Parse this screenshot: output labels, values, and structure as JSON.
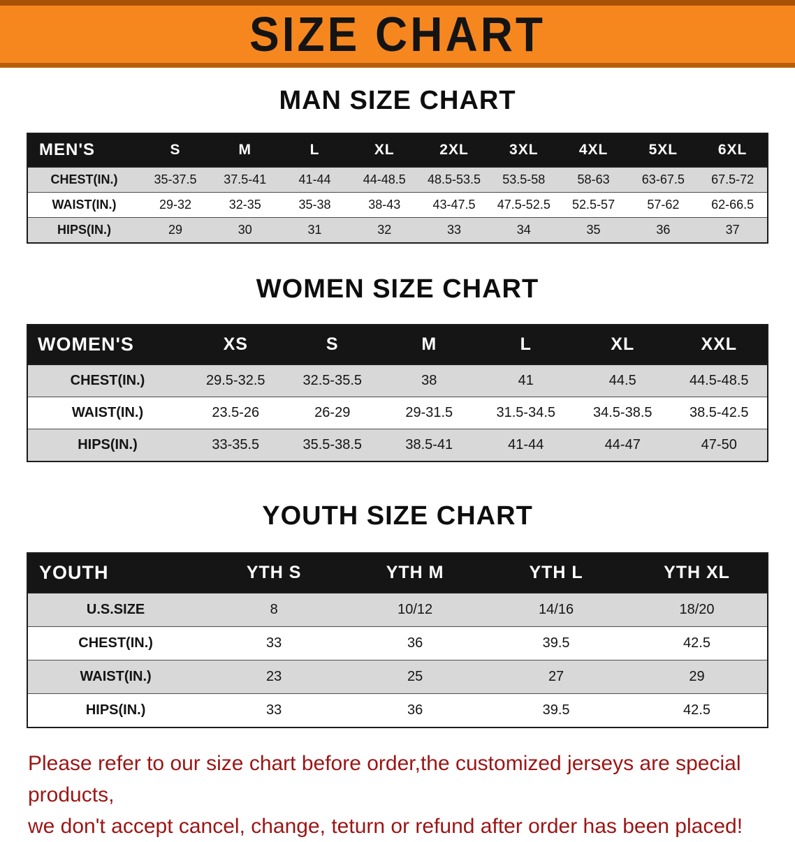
{
  "banner": {
    "title": "SIZE CHART"
  },
  "colors": {
    "banner_orange": "#f6871f",
    "banner_edge": "#a85208",
    "header_black": "#151515",
    "row_gray": "#d8d8d8",
    "footer_red": "#9c1515"
  },
  "men": {
    "heading": "MAN SIZE CHART",
    "table": {
      "header": [
        "MEN'S",
        "S",
        "M",
        "L",
        "XL",
        "2XL",
        "3XL",
        "4XL",
        "5XL",
        "6XL"
      ],
      "rows": [
        [
          "CHEST(IN.)",
          "35-37.5",
          "37.5-41",
          "41-44",
          "44-48.5",
          "48.5-53.5",
          "53.5-58",
          "58-63",
          "63-67.5",
          "67.5-72"
        ],
        [
          "WAIST(IN.)",
          "29-32",
          "32-35",
          "35-38",
          "38-43",
          "43-47.5",
          "47.5-52.5",
          "52.5-57",
          "57-62",
          "62-66.5"
        ],
        [
          "HIPS(IN.)",
          "29",
          "30",
          "31",
          "32",
          "33",
          "34",
          "35",
          "36",
          "37"
        ]
      ]
    }
  },
  "women": {
    "heading": "WOMEN SIZE CHART",
    "table": {
      "header": [
        "WOMEN'S",
        "XS",
        "S",
        "M",
        "L",
        "XL",
        "XXL"
      ],
      "rows": [
        [
          "CHEST(IN.)",
          "29.5-32.5",
          "32.5-35.5",
          "38",
          "41",
          "44.5",
          "44.5-48.5"
        ],
        [
          "WAIST(IN.)",
          "23.5-26",
          "26-29",
          "29-31.5",
          "31.5-34.5",
          "34.5-38.5",
          "38.5-42.5"
        ],
        [
          "HIPS(IN.)",
          "33-35.5",
          "35.5-38.5",
          "38.5-41",
          "41-44",
          "44-47",
          "47-50"
        ]
      ]
    }
  },
  "youth": {
    "heading": "YOUTH SIZE CHART",
    "table": {
      "header": [
        "YOUTH",
        "YTH S",
        "YTH M",
        "YTH L",
        "YTH XL"
      ],
      "rows": [
        [
          "U.S.SIZE",
          "8",
          "10/12",
          "14/16",
          "18/20"
        ],
        [
          "CHEST(IN.)",
          "33",
          "36",
          "39.5",
          "42.5"
        ],
        [
          "WAIST(IN.)",
          "23",
          "25",
          "27",
          "29"
        ],
        [
          "HIPS(IN.)",
          "33",
          "36",
          "39.5",
          "42.5"
        ]
      ]
    }
  },
  "footer": {
    "line1": "Please refer to our size chart before order,the customized jerseys are special products,",
    "line2": "we don't accept cancel, change, teturn or refund after order has been placed!"
  }
}
